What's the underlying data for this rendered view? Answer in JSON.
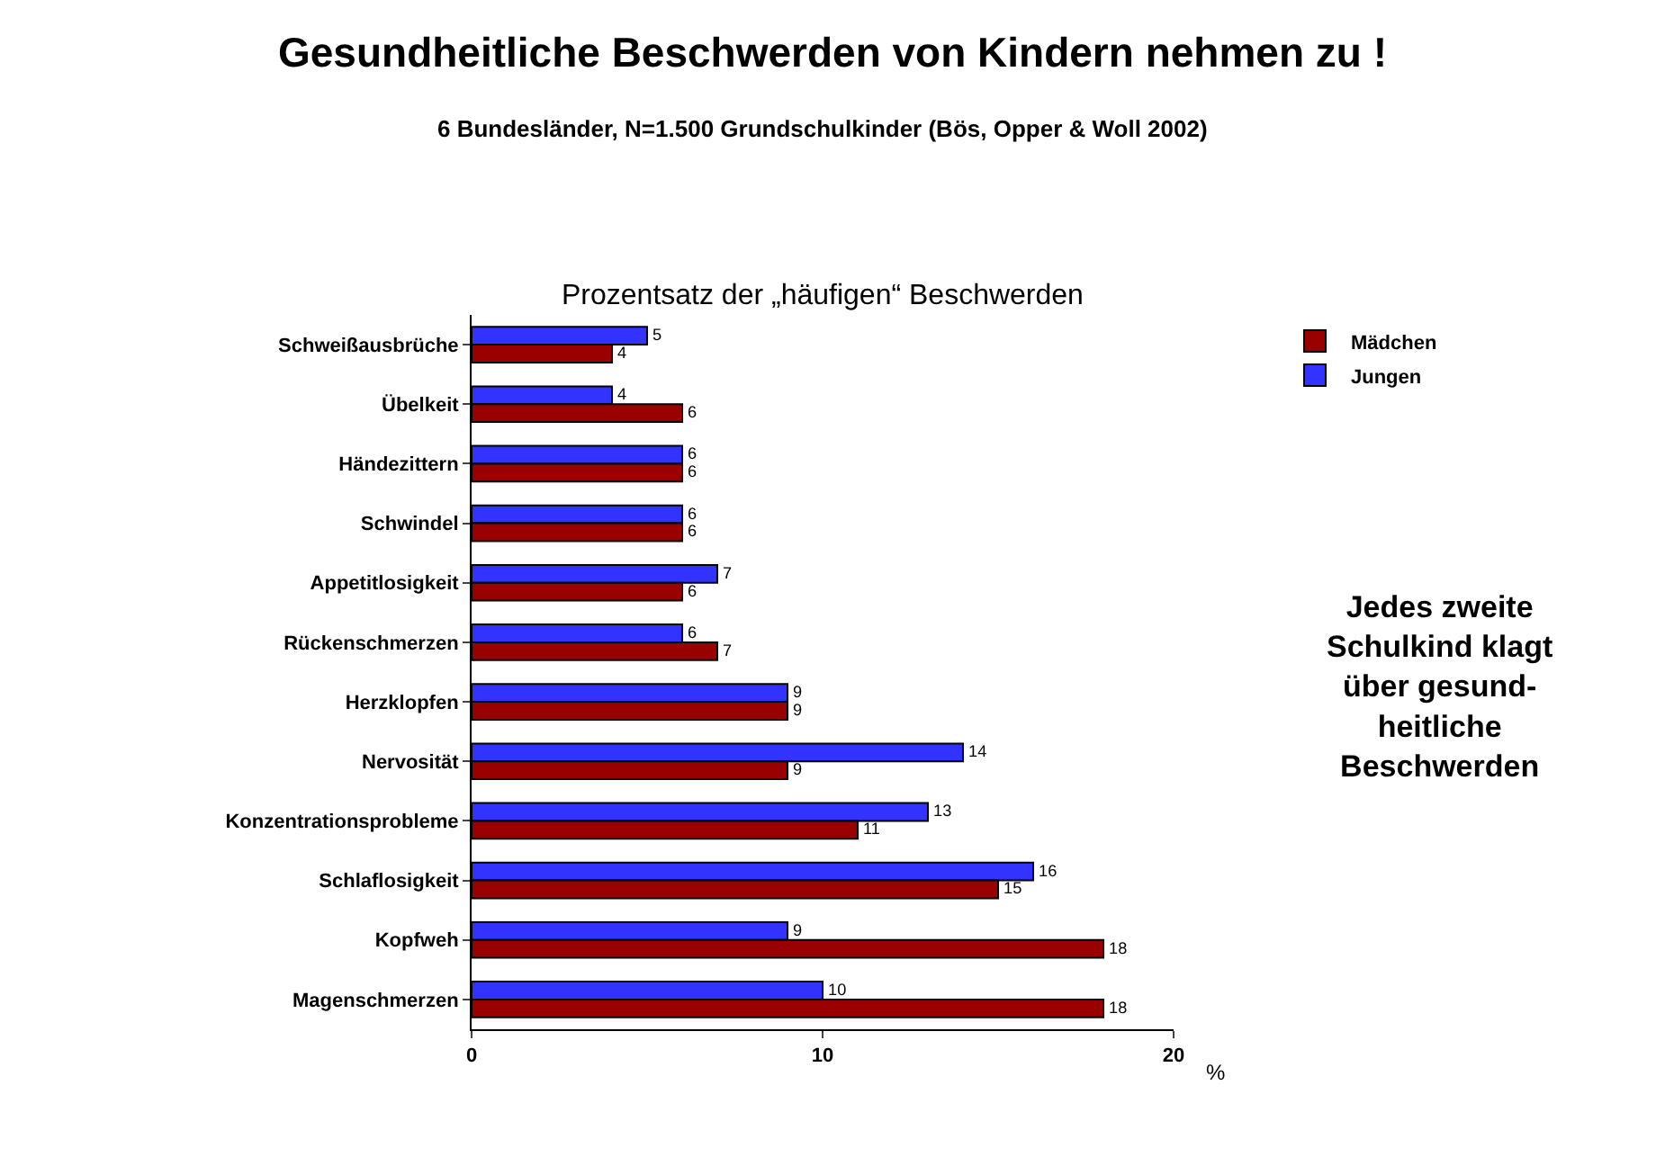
{
  "chart_data": {
    "type": "bar",
    "orientation": "horizontal",
    "title": "Gesundheitliche Beschwerden von Kindern nehmen zu !",
    "subtitle": "6 Bundesländer, N=1.500 Grundschulkinder (Bös, Opper & Woll 2002)",
    "xlabel": "%",
    "annotations": [
      "Prozentsatz der „häufigen“ Beschwerden",
      "Jedes zweite\nSchulkind klagt\nüber gesund-\nheitliche\nBeschwerden"
    ],
    "categories": [
      "Schweißausbrüche",
      "Übelkeit",
      "Händezittern",
      "Schwindel",
      "Appetitlosigkeit",
      "Rückenschmerzen",
      "Herzklopfen",
      "Nervosität",
      "Konzentrationsprobleme",
      "Schlaflosigkeit",
      "Kopfweh",
      "Magenschmerzen"
    ],
    "series": [
      {
        "name": "Jungen",
        "color": "#3333ff",
        "values": [
          5,
          4,
          6,
          6,
          7,
          6,
          9,
          14,
          13,
          16,
          9,
          10
        ]
      },
      {
        "name": "Mädchen",
        "color": "#990000",
        "values": [
          4,
          6,
          6,
          6,
          6,
          7,
          9,
          9,
          11,
          15,
          18,
          18
        ]
      }
    ],
    "xlim": [
      0,
      20
    ],
    "xticks": [
      0,
      10,
      20
    ],
    "grid": false,
    "legend": "top right",
    "data_labels": true
  }
}
